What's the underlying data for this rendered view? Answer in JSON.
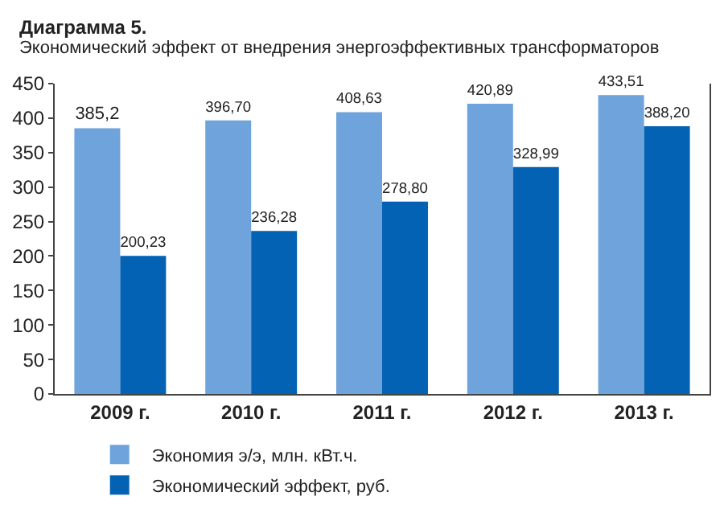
{
  "chart_data": {
    "type": "bar",
    "title": "Диаграмма 5.",
    "subtitle": "Экономический эффект от внедрения энергоэффективных трансформаторов",
    "categories": [
      "2009 г.",
      "2010 г.",
      "2011 г.",
      "2012 г.",
      "2013 г."
    ],
    "series": [
      {
        "name": "Экономия э/э, млн. кВт.ч.",
        "color": "#6fa3dc",
        "values": [
          385.2,
          396.7,
          408.63,
          420.89,
          433.51
        ],
        "value_labels": [
          "385,2",
          "396,70",
          "408,63",
          "420,89",
          "433,51"
        ]
      },
      {
        "name": "Экономический эффект, руб.",
        "color": "#0462b4",
        "values": [
          200.23,
          236.28,
          278.8,
          328.99,
          388.2
        ],
        "value_labels": [
          "200,23",
          "236,28",
          "278,80",
          "328,99",
          "388,20"
        ]
      }
    ],
    "ylim": [
      0,
      450
    ],
    "yticks": [
      0,
      50,
      100,
      150,
      200,
      250,
      300,
      350,
      400,
      450
    ],
    "grid": false,
    "legend": "bottom"
  }
}
